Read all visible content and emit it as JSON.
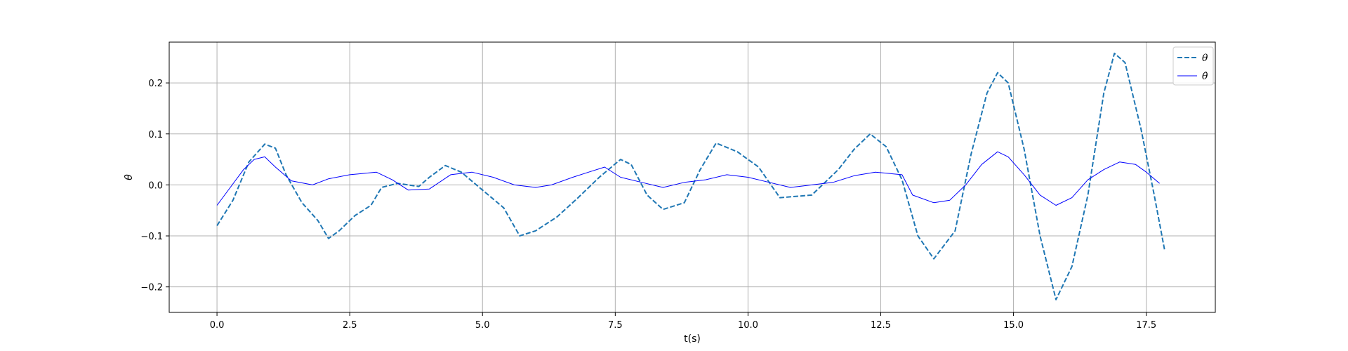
{
  "chart_data": {
    "type": "line",
    "title": "",
    "xlabel": "t(s)",
    "ylabel": "θ",
    "xlim": [
      -0.9,
      18.8
    ],
    "ylim": [
      -0.25,
      0.28
    ],
    "xticks": [
      0.0,
      2.5,
      5.0,
      7.5,
      10.0,
      12.5,
      15.0,
      17.5
    ],
    "xtick_labels": [
      "0.0",
      "2.5",
      "5.0",
      "7.5",
      "10.0",
      "12.5",
      "15.0",
      "17.5"
    ],
    "yticks": [
      -0.2,
      -0.1,
      0.0,
      0.1,
      0.2
    ],
    "ytick_labels": [
      "−0.2",
      "−0.1",
      "0.0",
      "0.1",
      "0.2"
    ],
    "grid": true,
    "legend": "top-right",
    "series": [
      {
        "name": "θ",
        "color": "#1f77b4",
        "style": "dashed",
        "points": [
          [
            0.0,
            -0.08
          ],
          [
            0.3,
            -0.03
          ],
          [
            0.6,
            0.045
          ],
          [
            0.9,
            0.08
          ],
          [
            1.1,
            0.072
          ],
          [
            1.3,
            0.02
          ],
          [
            1.6,
            -0.035
          ],
          [
            1.9,
            -0.07
          ],
          [
            2.1,
            -0.105
          ],
          [
            2.3,
            -0.09
          ],
          [
            2.6,
            -0.06
          ],
          [
            2.9,
            -0.04
          ],
          [
            3.1,
            -0.005
          ],
          [
            3.4,
            0.003
          ],
          [
            3.8,
            -0.003
          ],
          [
            4.0,
            0.015
          ],
          [
            4.3,
            0.038
          ],
          [
            4.6,
            0.025
          ],
          [
            5.0,
            -0.01
          ],
          [
            5.4,
            -0.045
          ],
          [
            5.7,
            -0.1
          ],
          [
            6.0,
            -0.09
          ],
          [
            6.4,
            -0.063
          ],
          [
            6.8,
            -0.025
          ],
          [
            7.2,
            0.015
          ],
          [
            7.6,
            0.05
          ],
          [
            7.8,
            0.04
          ],
          [
            8.1,
            -0.02
          ],
          [
            8.4,
            -0.048
          ],
          [
            8.8,
            -0.035
          ],
          [
            9.1,
            0.03
          ],
          [
            9.4,
            0.082
          ],
          [
            9.8,
            0.065
          ],
          [
            10.2,
            0.035
          ],
          [
            10.6,
            -0.025
          ],
          [
            11.2,
            -0.02
          ],
          [
            11.7,
            0.03
          ],
          [
            12.0,
            0.07
          ],
          [
            12.3,
            0.1
          ],
          [
            12.6,
            0.075
          ],
          [
            12.9,
            0.01
          ],
          [
            13.2,
            -0.1
          ],
          [
            13.5,
            -0.145
          ],
          [
            13.9,
            -0.09
          ],
          [
            14.2,
            0.06
          ],
          [
            14.5,
            0.18
          ],
          [
            14.7,
            0.22
          ],
          [
            14.9,
            0.2
          ],
          [
            15.2,
            0.07
          ],
          [
            15.5,
            -0.1
          ],
          [
            15.8,
            -0.225
          ],
          [
            16.1,
            -0.16
          ],
          [
            16.4,
            -0.02
          ],
          [
            16.7,
            0.18
          ],
          [
            16.9,
            0.258
          ],
          [
            17.1,
            0.24
          ],
          [
            17.4,
            0.11
          ],
          [
            17.65,
            -0.02
          ],
          [
            17.85,
            -0.13
          ]
        ]
      },
      {
        "name": "θ̂",
        "color": "#0000ff",
        "style": "solid",
        "points": [
          [
            0.0,
            -0.04
          ],
          [
            0.25,
            -0.005
          ],
          [
            0.5,
            0.03
          ],
          [
            0.7,
            0.05
          ],
          [
            0.9,
            0.055
          ],
          [
            1.1,
            0.035
          ],
          [
            1.4,
            0.008
          ],
          [
            1.8,
            0.0
          ],
          [
            2.1,
            0.012
          ],
          [
            2.5,
            0.02
          ],
          [
            3.0,
            0.025
          ],
          [
            3.3,
            0.01
          ],
          [
            3.6,
            -0.01
          ],
          [
            4.0,
            -0.008
          ],
          [
            4.4,
            0.02
          ],
          [
            4.8,
            0.025
          ],
          [
            5.2,
            0.015
          ],
          [
            5.6,
            0.0
          ],
          [
            6.0,
            -0.005
          ],
          [
            6.3,
            0.0
          ],
          [
            6.7,
            0.015
          ],
          [
            7.0,
            0.025
          ],
          [
            7.3,
            0.035
          ],
          [
            7.6,
            0.015
          ],
          [
            8.0,
            0.005
          ],
          [
            8.4,
            -0.005
          ],
          [
            8.8,
            0.005
          ],
          [
            9.2,
            0.01
          ],
          [
            9.6,
            0.02
          ],
          [
            10.0,
            0.015
          ],
          [
            10.4,
            0.005
          ],
          [
            10.8,
            -0.005
          ],
          [
            11.2,
            0.0
          ],
          [
            11.6,
            0.005
          ],
          [
            12.0,
            0.018
          ],
          [
            12.4,
            0.025
          ],
          [
            12.9,
            0.02
          ],
          [
            13.1,
            -0.02
          ],
          [
            13.5,
            -0.035
          ],
          [
            13.8,
            -0.03
          ],
          [
            14.1,
            0.0
          ],
          [
            14.4,
            0.04
          ],
          [
            14.7,
            0.065
          ],
          [
            14.9,
            0.055
          ],
          [
            15.2,
            0.02
          ],
          [
            15.5,
            -0.02
          ],
          [
            15.8,
            -0.04
          ],
          [
            16.1,
            -0.025
          ],
          [
            16.4,
            0.01
          ],
          [
            16.7,
            0.03
          ],
          [
            17.0,
            0.045
          ],
          [
            17.3,
            0.04
          ],
          [
            17.5,
            0.025
          ],
          [
            17.75,
            0.003
          ]
        ]
      }
    ]
  }
}
